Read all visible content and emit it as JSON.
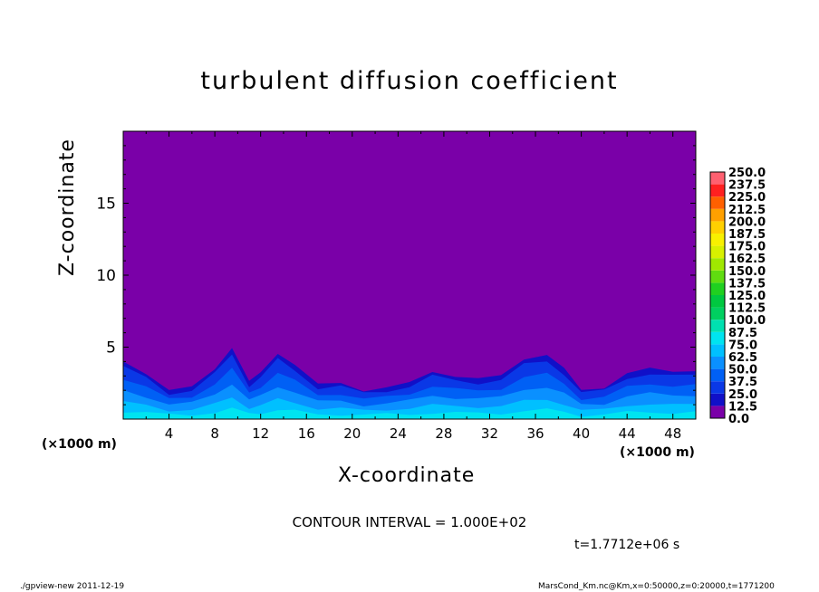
{
  "chart_data": {
    "type": "heatmap",
    "title": "turbulent diffusion coefficient",
    "xlabel": "X-coordinate",
    "ylabel": "Z-coordinate",
    "x_unit_label": "(×1000 m)",
    "x_unit_label_right": "(×1000 m)",
    "xlim": [
      0,
      50
    ],
    "ylim": [
      0,
      20
    ],
    "x_ticks": [
      "4",
      "8",
      "12",
      "16",
      "20",
      "24",
      "28",
      "32",
      "36",
      "40",
      "44",
      "48"
    ],
    "y_ticks": [
      "5",
      "10",
      "15"
    ],
    "colorbar": {
      "levels": [
        "0.0",
        "12.5",
        "25.0",
        "37.5",
        "50.0",
        "62.5",
        "75.0",
        "87.5",
        "100.0",
        "112.5",
        "125.0",
        "137.5",
        "150.0",
        "162.5",
        "175.0",
        "187.5",
        "200.0",
        "212.5",
        "225.0",
        "237.5",
        "250.0"
      ],
      "colors": [
        "#7a00a8",
        "#1010c8",
        "#0a38e6",
        "#0060f5",
        "#0a90ff",
        "#00c0ff",
        "#00e4f0",
        "#00e0b0",
        "#00d060",
        "#00c840",
        "#20d020",
        "#60dc10",
        "#a0e800",
        "#d8f000",
        "#f8f000",
        "#ffd000",
        "#ffa000",
        "#ff6000",
        "#ff2020",
        "#ff6070"
      ]
    },
    "background_color": "#7a00a8",
    "turbulent_layer_top_profile": {
      "x": [
        0,
        2,
        4,
        6,
        8,
        9.5,
        11,
        12,
        13.5,
        15,
        17,
        19,
        21,
        23,
        25,
        27,
        29,
        31,
        33,
        35,
        37,
        38.5,
        40,
        42,
        44,
        46,
        48,
        50
      ],
      "z": [
        4.0,
        3.2,
        2.0,
        2.2,
        3.5,
        5.0,
        2.6,
        3.2,
        4.6,
        3.8,
        2.4,
        2.5,
        2.0,
        2.2,
        2.5,
        3.3,
        3.0,
        2.8,
        3.0,
        4.2,
        4.5,
        3.5,
        2.0,
        2.2,
        3.2,
        3.5,
        3.3,
        3.4
      ]
    },
    "contour_interval": "CONTOUR INTERVAL = 1.000E+02",
    "time_label": "t=1.7712e+06 s"
  },
  "footer": {
    "left": "./gpview-new   2011-12-19",
    "right": "MarsCond_Km.nc@Km,x=0:50000,z=0:20000,t=1771200"
  }
}
